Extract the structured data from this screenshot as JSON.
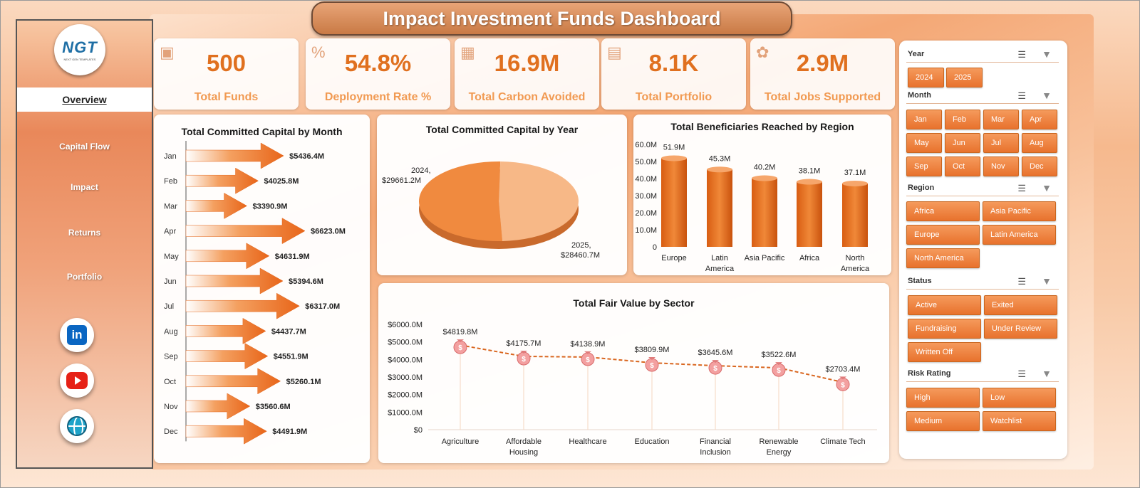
{
  "title": "Impact Investment Funds Dashboard",
  "logo": {
    "text": "NGT",
    "tagline": "NEXT GEN TEMPLATES"
  },
  "nav": [
    "Overview",
    "Capital Flow",
    "Impact",
    "Returns",
    "Portfolio"
  ],
  "social": [
    "linkedin-icon",
    "youtube-icon",
    "globe-icon"
  ],
  "kpis": [
    {
      "value": "500",
      "label": "Total Funds",
      "icon": "clipboard-icon"
    },
    {
      "value": "54.8%",
      "label": "Deployment Rate %",
      "icon": "percent-icon"
    },
    {
      "value": "16.9M",
      "label": "Total Carbon Avoided",
      "icon": "leaf-doc-icon"
    },
    {
      "value": "8.1K",
      "label": "Total Portfolio",
      "icon": "portfolio-icon"
    },
    {
      "value": "2.9M",
      "label": "Total Jobs Supported",
      "icon": "people-icon"
    }
  ],
  "monthly": {
    "title": "Total Committed Capital by Month",
    "chart_data": {
      "type": "bar",
      "categories": [
        "Jan",
        "Feb",
        "Mar",
        "Apr",
        "May",
        "Jun",
        "Jul",
        "Aug",
        "Sep",
        "Oct",
        "Nov",
        "Dec"
      ],
      "values": [
        5436.4,
        4025.8,
        3390.9,
        6623.0,
        4631.9,
        5394.6,
        6317.0,
        4437.7,
        4551.9,
        5260.1,
        3560.6,
        4491.9
      ],
      "labels": [
        "$5436.4M",
        "$4025.8M",
        "$3390.9M",
        "$6623.0M",
        "$4631.9M",
        "$5394.6M",
        "$6317.0M",
        "$4437.7M",
        "$4551.9M",
        "$5260.1M",
        "$3560.6M",
        "$4491.9M"
      ]
    }
  },
  "yearly": {
    "title": "Total Committed Capital by Year",
    "chart_data": {
      "type": "pie",
      "categories": [
        "2024",
        "2025"
      ],
      "values": [
        29661.2,
        28460.7
      ],
      "labels": [
        "2024,",
        "$29661.2M",
        "2025,",
        "$28460.7M"
      ]
    }
  },
  "region": {
    "title": "Total Beneficiaries Reached by Region",
    "chart_data": {
      "type": "bar",
      "categories": [
        "Europe",
        "Latin America",
        "Asia Pacific",
        "Africa",
        "North America"
      ],
      "category_lines": [
        [
          "Europe"
        ],
        [
          "Latin",
          "America"
        ],
        [
          "Asia Pacific"
        ],
        [
          "Africa"
        ],
        [
          "North",
          "America"
        ]
      ],
      "values": [
        51.9,
        45.3,
        40.2,
        38.1,
        37.1
      ],
      "labels": [
        "51.9M",
        "45.3M",
        "40.2M",
        "38.1M",
        "37.1M"
      ],
      "yticks": [
        "0",
        "10.0M",
        "20.0M",
        "30.0M",
        "40.0M",
        "50.0M",
        "60.0M"
      ],
      "ylim": [
        0,
        60
      ]
    }
  },
  "sector": {
    "title": "Total Fair Value by Sector",
    "chart_data": {
      "type": "line",
      "categories": [
        "Agriculture",
        "Affordable Housing",
        "Healthcare",
        "Education",
        "Financial Inclusion",
        "Renewable Energy",
        "Climate Tech"
      ],
      "category_lines": [
        [
          "Agriculture"
        ],
        [
          "Affordable",
          "Housing"
        ],
        [
          "Healthcare"
        ],
        [
          "Education"
        ],
        [
          "Financial",
          "Inclusion"
        ],
        [
          "Renewable",
          "Energy"
        ],
        [
          "Climate Tech"
        ]
      ],
      "values": [
        4819.8,
        4175.7,
        4138.9,
        3809.9,
        3645.6,
        3522.6,
        2703.4
      ],
      "labels": [
        "$4819.8M",
        "$4175.7M",
        "$4138.9M",
        "$3809.9M",
        "$3645.6M",
        "$3522.6M",
        "$2703.4M"
      ],
      "yticks": [
        "$0",
        "$1000.0M",
        "$2000.0M",
        "$3000.0M",
        "$4000.0M",
        "$5000.0M",
        "$6000.0M"
      ],
      "ylim": [
        0,
        6000
      ],
      "marker": "money-bag-icon"
    }
  },
  "slicers": {
    "year": {
      "title": "Year",
      "items": [
        "2024",
        "2025"
      ]
    },
    "month": {
      "title": "Month",
      "items": [
        "Jan",
        "Feb",
        "Mar",
        "Apr",
        "May",
        "Jun",
        "Jul",
        "Aug",
        "Sep",
        "Oct",
        "Nov",
        "Dec"
      ]
    },
    "region": {
      "title": "Region",
      "items": [
        "Africa",
        "Asia Pacific",
        "Europe",
        "Latin America",
        "North America"
      ]
    },
    "status": {
      "title": "Status",
      "items": [
        "Active",
        "Exited",
        "Fundraising",
        "Under Review",
        "Written Off"
      ]
    },
    "risk": {
      "title": "Risk Rating",
      "items": [
        "High",
        "Low",
        "Medium",
        "Watchlist"
      ]
    }
  },
  "colors": {
    "accent": "#e8722d",
    "kpi_value": "#e0701f",
    "kpi_label": "#f19a52",
    "line": "#d9661f"
  }
}
